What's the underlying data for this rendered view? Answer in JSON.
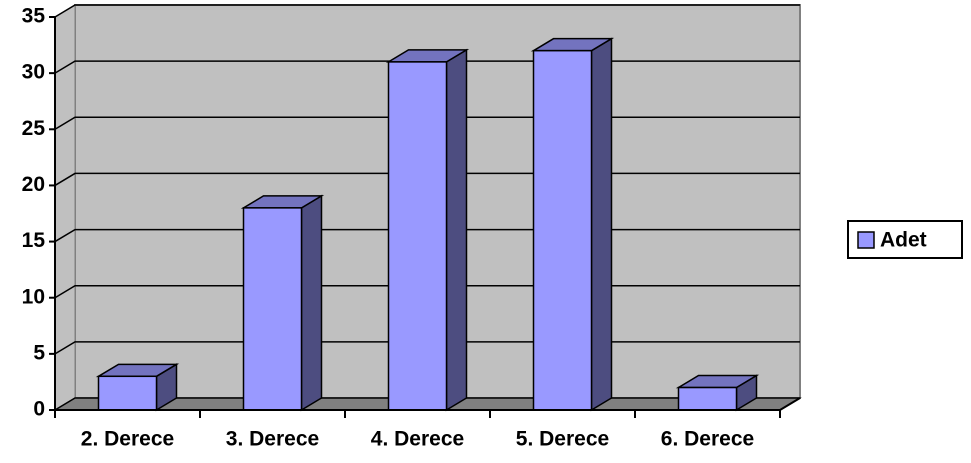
{
  "chart_data": {
    "type": "bar",
    "categories": [
      "2. Derece",
      "3. Derece",
      "4. Derece",
      "5. Derece",
      "6. Derece"
    ],
    "series": [
      {
        "name": "Adet",
        "color": "#9999ff",
        "values": [
          3,
          18,
          31,
          32,
          2
        ]
      }
    ],
    "ylim": [
      0,
      35
    ],
    "yticks": [
      0,
      5,
      10,
      15,
      20,
      25,
      30,
      35
    ],
    "grid": true,
    "legend": "right"
  }
}
